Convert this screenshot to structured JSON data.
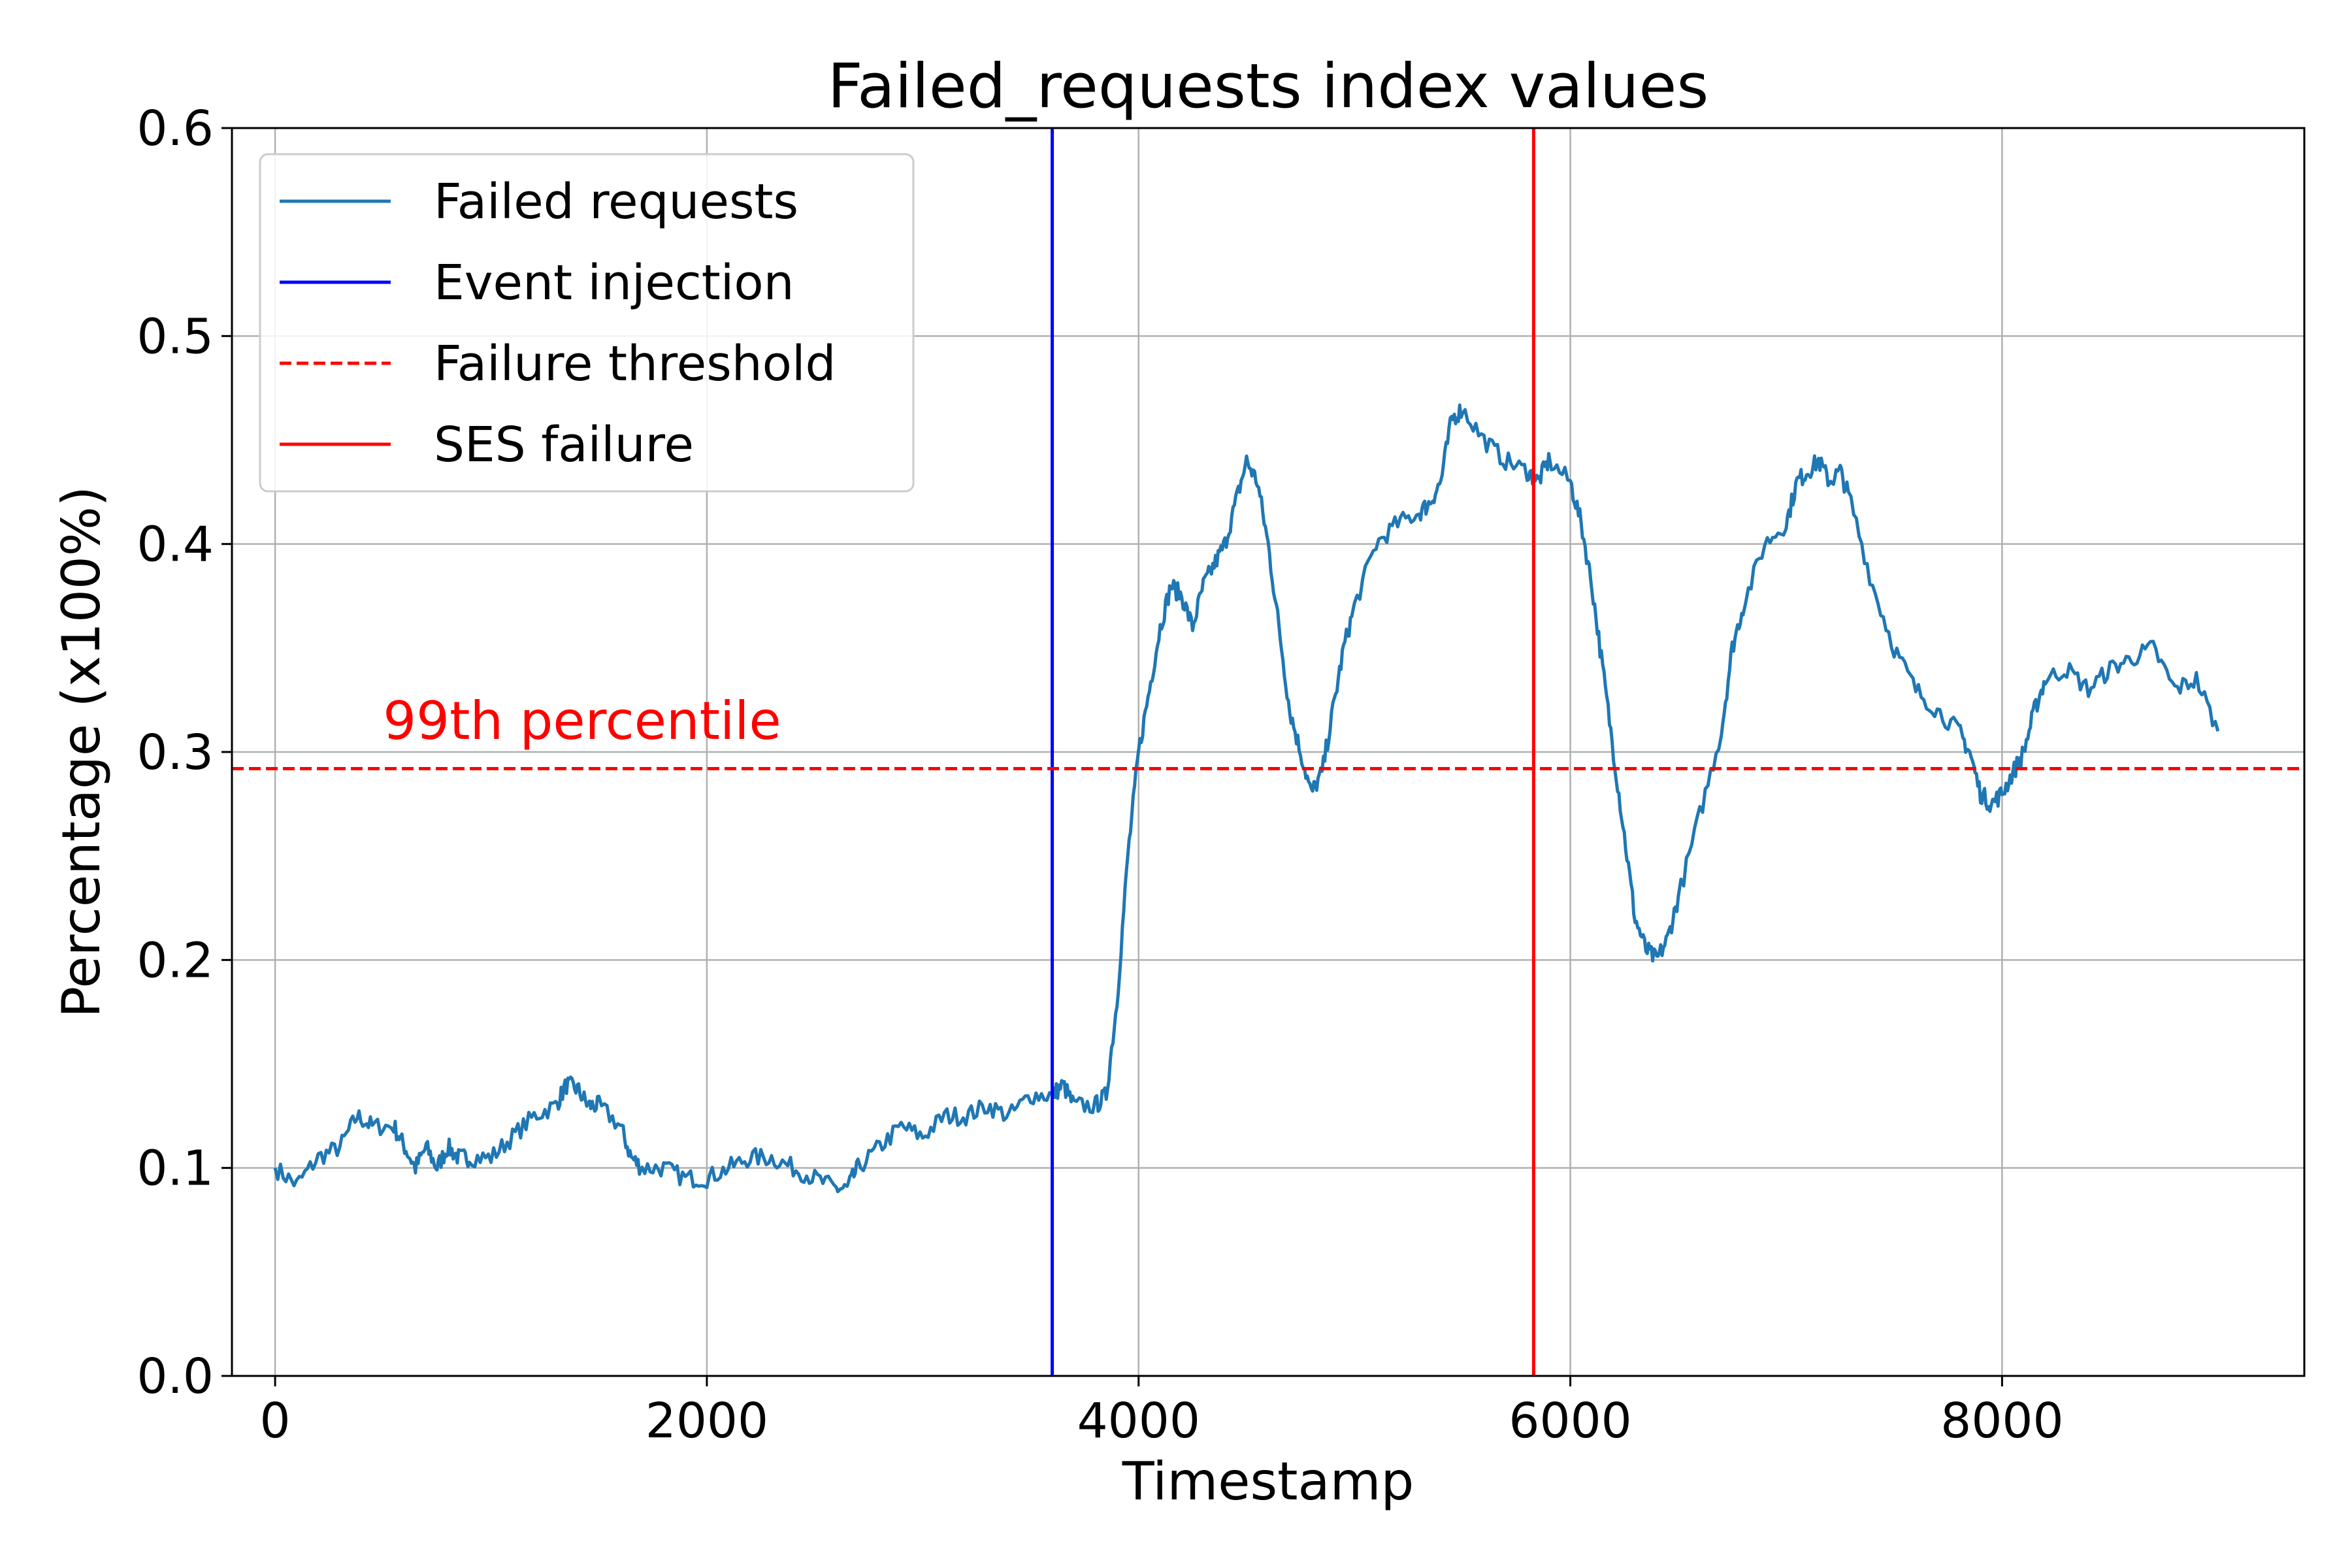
{
  "chart_data": {
    "type": "line",
    "title": "Failed_requests index values",
    "xlabel": "Timestamp",
    "ylabel": "Percentage (x100%)",
    "xlim": [
      -200,
      9400
    ],
    "ylim": [
      0.0,
      0.6
    ],
    "xticks": [
      0,
      2000,
      4000,
      6000,
      8000
    ],
    "xtick_labels": [
      "0",
      "2000",
      "4000",
      "6000",
      "8000"
    ],
    "yticks": [
      0.0,
      0.1,
      0.2,
      0.3,
      0.4,
      0.5,
      0.6
    ],
    "ytick_labels": [
      "0.0",
      "0.1",
      "0.2",
      "0.3",
      "0.4",
      "0.5",
      "0.6"
    ],
    "grid": true,
    "legend_position": "top-left",
    "series": [
      {
        "name": "Failed requests",
        "color": "#1f77b4",
        "x": [
          0,
          100,
          200,
          300,
          380,
          450,
          550,
          600,
          650,
          700,
          750,
          800,
          850,
          900,
          1000,
          1100,
          1200,
          1300,
          1350,
          1400,
          1450,
          1500,
          1600,
          1650,
          1700,
          1800,
          1900,
          2000,
          2100,
          2200,
          2300,
          2400,
          2500,
          2600,
          2650,
          2700,
          2800,
          2900,
          3000,
          3100,
          3200,
          3300,
          3400,
          3500,
          3600,
          3650,
          3700,
          3800,
          3850,
          3900,
          3950,
          4000,
          4050,
          4100,
          4150,
          4200,
          4250,
          4300,
          4350,
          4400,
          4450,
          4500,
          4550,
          4600,
          4650,
          4700,
          4750,
          4800,
          4850,
          4900,
          4950,
          5000,
          5100,
          5200,
          5300,
          5350,
          5400,
          5450,
          5500,
          5600,
          5700,
          5800,
          5850,
          5900,
          6000,
          6050,
          6100,
          6150,
          6200,
          6250,
          6300,
          6350,
          6400,
          6450,
          6500,
          6600,
          6700,
          6750,
          6800,
          6900,
          7000,
          7050,
          7100,
          7150,
          7200,
          7250,
          7300,
          7400,
          7500,
          7600,
          7700,
          7800,
          7850,
          7900,
          7950,
          8000,
          8050,
          8100,
          8150,
          8200,
          8300,
          8400,
          8500,
          8600,
          8700,
          8800,
          8900,
          9000
        ],
        "y": [
          0.1,
          0.092,
          0.105,
          0.11,
          0.125,
          0.12,
          0.12,
          0.11,
          0.1,
          0.11,
          0.1,
          0.11,
          0.105,
          0.105,
          0.105,
          0.115,
          0.125,
          0.13,
          0.14,
          0.138,
          0.13,
          0.13,
          0.12,
          0.105,
          0.1,
          0.1,
          0.095,
          0.095,
          0.1,
          0.105,
          0.105,
          0.1,
          0.095,
          0.09,
          0.09,
          0.1,
          0.11,
          0.12,
          0.115,
          0.125,
          0.125,
          0.13,
          0.125,
          0.135,
          0.135,
          0.14,
          0.13,
          0.13,
          0.135,
          0.18,
          0.25,
          0.3,
          0.33,
          0.36,
          0.38,
          0.375,
          0.36,
          0.38,
          0.39,
          0.4,
          0.42,
          0.44,
          0.43,
          0.4,
          0.36,
          0.32,
          0.3,
          0.28,
          0.29,
          0.32,
          0.35,
          0.37,
          0.4,
          0.41,
          0.415,
          0.42,
          0.43,
          0.46,
          0.465,
          0.45,
          0.44,
          0.435,
          0.43,
          0.44,
          0.43,
          0.41,
          0.38,
          0.34,
          0.3,
          0.26,
          0.22,
          0.205,
          0.2,
          0.21,
          0.23,
          0.27,
          0.31,
          0.35,
          0.37,
          0.4,
          0.41,
          0.43,
          0.435,
          0.44,
          0.43,
          0.435,
          0.42,
          0.38,
          0.35,
          0.33,
          0.32,
          0.31,
          0.3,
          0.28,
          0.275,
          0.28,
          0.29,
          0.3,
          0.32,
          0.335,
          0.34,
          0.33,
          0.34,
          0.345,
          0.35,
          0.33,
          0.335,
          0.31
        ]
      },
      {
        "name": "Event injection",
        "color": "#0000ff",
        "type": "vline",
        "x": 3600
      },
      {
        "name": "Failure threshold",
        "color": "#ff0000",
        "type": "hline",
        "style": "dashed",
        "y": 0.292
      },
      {
        "name": "SES failure",
        "color": "#ff0000",
        "type": "vline",
        "x": 5830
      }
    ],
    "annotations": [
      {
        "text": "99th percentile",
        "color": "#ff0000",
        "x": 500,
        "y": 0.31
      }
    ]
  }
}
